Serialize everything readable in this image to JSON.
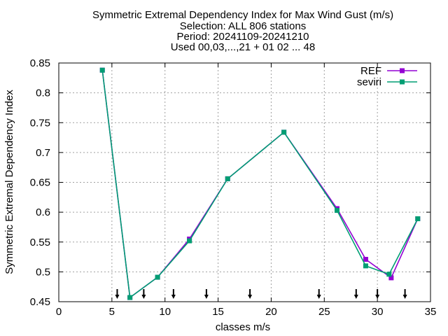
{
  "chart_data": {
    "type": "line",
    "title": [
      "Symmetric Extremal Dependency Index  for Max Wind Gust (m/s)",
      "Selection: ALL    806 stations",
      "Period: 20241109-20241210",
      "Used 00,03,...,21 + 01 02 ... 48"
    ],
    "xlabel": "classes m/s",
    "ylabel": "Symmetric Extremal Dependency Index",
    "xlim": [
      0,
      35
    ],
    "ylim": [
      0.45,
      0.85
    ],
    "xticks": [
      0,
      5,
      10,
      15,
      20,
      25,
      30,
      35
    ],
    "xtick_labels": [
      "0",
      "5",
      "10",
      "15",
      "20",
      "25",
      "30",
      "35"
    ],
    "yticks": [
      0.45,
      0.5,
      0.55,
      0.6,
      0.65,
      0.7,
      0.75,
      0.8,
      0.85
    ],
    "ytick_labels": [
      "0.45",
      "0.5",
      "0.55",
      "0.6",
      "0.65",
      "0.7",
      "0.75",
      "0.8",
      "0.85"
    ],
    "grid": true,
    "legend_position": "top-right",
    "class_boundary_arrows": [
      5.5,
      8,
      10.8,
      13.9,
      18,
      24.5,
      28,
      30,
      32.6
    ],
    "series": [
      {
        "name": "REF",
        "color": "#9400d3",
        "x": [
          4.1,
          6.7,
          9.3,
          12.3,
          15.9,
          21.2,
          26.2,
          28.9,
          31.3,
          33.8
        ],
        "y": [
          0.838,
          0.457,
          0.491,
          0.555,
          0.656,
          0.734,
          0.606,
          0.521,
          0.49,
          0.589
        ]
      },
      {
        "name": "seviri",
        "color": "#009e73",
        "x": [
          4.1,
          6.7,
          9.3,
          12.3,
          15.9,
          21.2,
          26.2,
          28.9,
          31.1,
          33.8
        ],
        "y": [
          0.838,
          0.457,
          0.491,
          0.552,
          0.656,
          0.734,
          0.603,
          0.51,
          0.496,
          0.589
        ]
      }
    ]
  }
}
